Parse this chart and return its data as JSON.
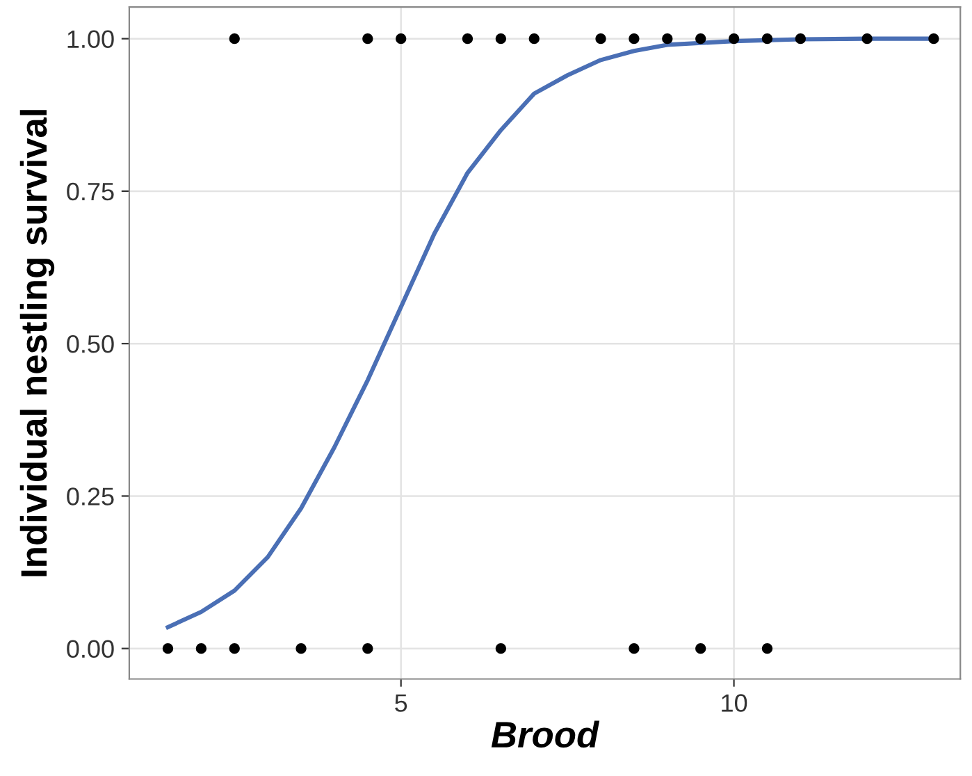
{
  "chart_data": {
    "type": "scatter",
    "xlabel": "Brood",
    "ylabel": "Individual nestling survival",
    "xlim": [
      0.92,
      13.4
    ],
    "ylim": [
      -0.05,
      1.052
    ],
    "xticks": [
      5,
      10
    ],
    "yticks": [
      {
        "value": 0,
        "label": "0.00"
      },
      {
        "value": 0.25,
        "label": "0.25"
      },
      {
        "value": 0.5,
        "label": "0.50"
      },
      {
        "value": 0.75,
        "label": "0.75"
      },
      {
        "value": 1,
        "label": "1.00"
      }
    ],
    "grid": true,
    "series": [
      {
        "marker": "circle",
        "color": "#000000",
        "x": [
          2.5,
          4.5,
          5,
          6,
          6.5,
          7,
          8,
          8.5,
          9,
          9.5,
          10,
          10.5,
          11,
          12,
          13,
          1.5,
          2,
          2.5,
          3.5,
          4.5,
          6.5,
          8.5,
          9.5,
          10.5
        ],
        "values": [
          1,
          1,
          1,
          1,
          1,
          1,
          1,
          1,
          1,
          1,
          1,
          1,
          1,
          1,
          1,
          0,
          0,
          0,
          0,
          0,
          0,
          0,
          0,
          0
        ]
      },
      {
        "type": "line",
        "color": "#4a6fb5",
        "line_style": "solid",
        "marker": "none",
        "x": [
          1.5,
          2,
          2.5,
          3,
          3.5,
          4,
          4.5,
          5,
          5.5,
          6,
          6.5,
          7,
          7.5,
          8,
          8.5,
          9,
          10,
          11,
          12,
          13
        ],
        "values": [
          0.035,
          0.06,
          0.095,
          0.15,
          0.23,
          0.33,
          0.44,
          0.56,
          0.68,
          0.78,
          0.85,
          0.91,
          0.94,
          0.965,
          0.98,
          0.99,
          0.996,
          0.999,
          1.0,
          1.0
        ]
      }
    ]
  }
}
